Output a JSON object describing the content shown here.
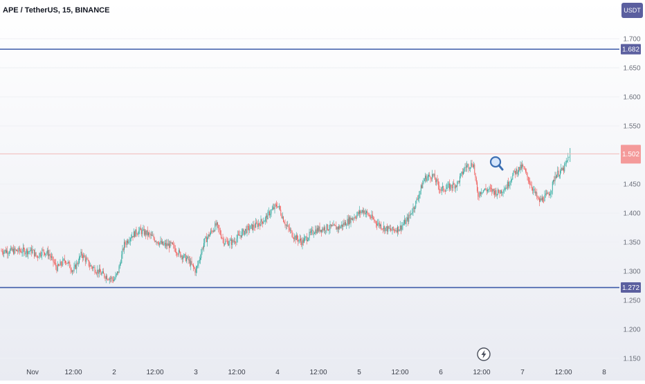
{
  "header": {
    "symbol": "APE / TetherUS, 15, BINANCE",
    "currency_button": "USDT"
  },
  "colors": {
    "up": "#26a69a",
    "down": "#ef5350",
    "level_line": "#3b5aa8",
    "level_label_bg": "#5b5f9f",
    "price_line": "#f2b8b8",
    "price_label_bg": "#f49a9a",
    "axis_text": "#6b6f7a"
  },
  "icons": {
    "magnifier": "magnifier-icon",
    "flash": "flash-icon"
  },
  "chart_data": {
    "type": "candlestick",
    "y_ticks": [
      "1.700",
      "1.650",
      "1.600",
      "1.550",
      "1.450",
      "1.400",
      "1.350",
      "1.300",
      "1.250",
      "1.200",
      "1.150"
    ],
    "ylim": [
      1.145,
      1.72
    ],
    "x_ticks": [
      "Nov",
      "12:00",
      "2",
      "12:00",
      "3",
      "12:00",
      "4",
      "12:00",
      "5",
      "12:00",
      "6",
      "12:00",
      "7",
      "12:00",
      "8"
    ],
    "horizontal_levels": [
      {
        "value": 1.682,
        "label": "1.682"
      },
      {
        "value": 1.272,
        "label": "1.272"
      }
    ],
    "current_price": {
      "value": 1.502,
      "label": "1.502"
    },
    "path_points": [
      [
        0,
        1.335
      ],
      [
        0.05,
        1.325
      ],
      [
        0.12,
        1.335
      ],
      [
        0.2,
        1.33
      ],
      [
        0.3,
        1.305
      ],
      [
        0.4,
        1.32
      ],
      [
        0.5,
        1.3
      ],
      [
        0.6,
        1.33
      ],
      [
        0.7,
        1.31
      ],
      [
        0.85,
        1.295
      ],
      [
        1.0,
        1.285
      ],
      [
        1.05,
        1.3
      ],
      [
        1.12,
        1.345
      ],
      [
        1.2,
        1.36
      ],
      [
        1.3,
        1.37
      ],
      [
        1.4,
        1.365
      ],
      [
        1.5,
        1.355
      ],
      [
        1.6,
        1.345
      ],
      [
        1.7,
        1.345
      ],
      [
        1.8,
        1.33
      ],
      [
        1.9,
        1.32
      ],
      [
        2.0,
        1.3
      ],
      [
        2.1,
        1.35
      ],
      [
        2.25,
        1.38
      ],
      [
        2.35,
        1.35
      ],
      [
        2.45,
        1.35
      ],
      [
        2.6,
        1.37
      ],
      [
        2.75,
        1.38
      ],
      [
        2.85,
        1.39
      ],
      [
        2.9,
        1.4
      ],
      [
        3.0,
        1.415
      ],
      [
        3.1,
        1.38
      ],
      [
        3.2,
        1.36
      ],
      [
        3.3,
        1.35
      ],
      [
        3.45,
        1.37
      ],
      [
        3.6,
        1.375
      ],
      [
        3.75,
        1.375
      ],
      [
        3.85,
        1.385
      ],
      [
        3.95,
        1.395
      ],
      [
        4.05,
        1.405
      ],
      [
        4.2,
        1.385
      ],
      [
        4.3,
        1.375
      ],
      [
        4.4,
        1.37
      ],
      [
        4.5,
        1.375
      ],
      [
        4.6,
        1.39
      ],
      [
        4.7,
        1.42
      ],
      [
        4.8,
        1.46
      ],
      [
        4.9,
        1.465
      ],
      [
        5.0,
        1.44
      ],
      [
        5.1,
        1.445
      ],
      [
        5.2,
        1.45
      ],
      [
        5.3,
        1.48
      ],
      [
        5.4,
        1.485
      ],
      [
        5.45,
        1.43
      ],
      [
        5.5,
        1.44
      ],
      [
        5.6,
        1.44
      ],
      [
        5.7,
        1.435
      ],
      [
        5.8,
        1.445
      ],
      [
        5.9,
        1.47
      ],
      [
        6.0,
        1.48
      ],
      [
        6.1,
        1.45
      ],
      [
        6.2,
        1.42
      ],
      [
        6.3,
        1.43
      ],
      [
        6.35,
        1.44
      ],
      [
        6.4,
        1.465
      ],
      [
        6.5,
        1.475
      ],
      [
        6.55,
        1.49
      ],
      [
        6.57,
        1.502
      ]
    ]
  }
}
